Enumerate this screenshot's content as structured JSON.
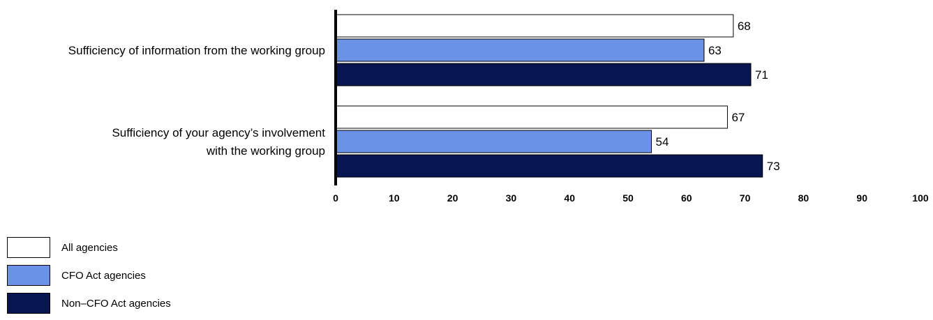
{
  "chart_data": {
    "type": "bar",
    "orientation": "horizontal",
    "categories": [
      [
        "Sufficiency of information from the working group"
      ],
      [
        "Sufficiency of your agency’s involvement",
        "with the working group"
      ]
    ],
    "series": [
      {
        "name": "All agencies",
        "color": "#ffffff",
        "values": [
          68,
          67
        ]
      },
      {
        "name": "CFO Act agencies",
        "color": "#6a93e8",
        "values": [
          63,
          54
        ]
      },
      {
        "name": "Non–CFO Act agencies",
        "color": "#071650",
        "values": [
          71,
          73
        ]
      }
    ],
    "xlim": [
      0,
      100
    ],
    "xticks": [
      0,
      10,
      20,
      30,
      40,
      50,
      60,
      70,
      80,
      90,
      100
    ],
    "grid": false,
    "legend_position": "bottom-left"
  }
}
